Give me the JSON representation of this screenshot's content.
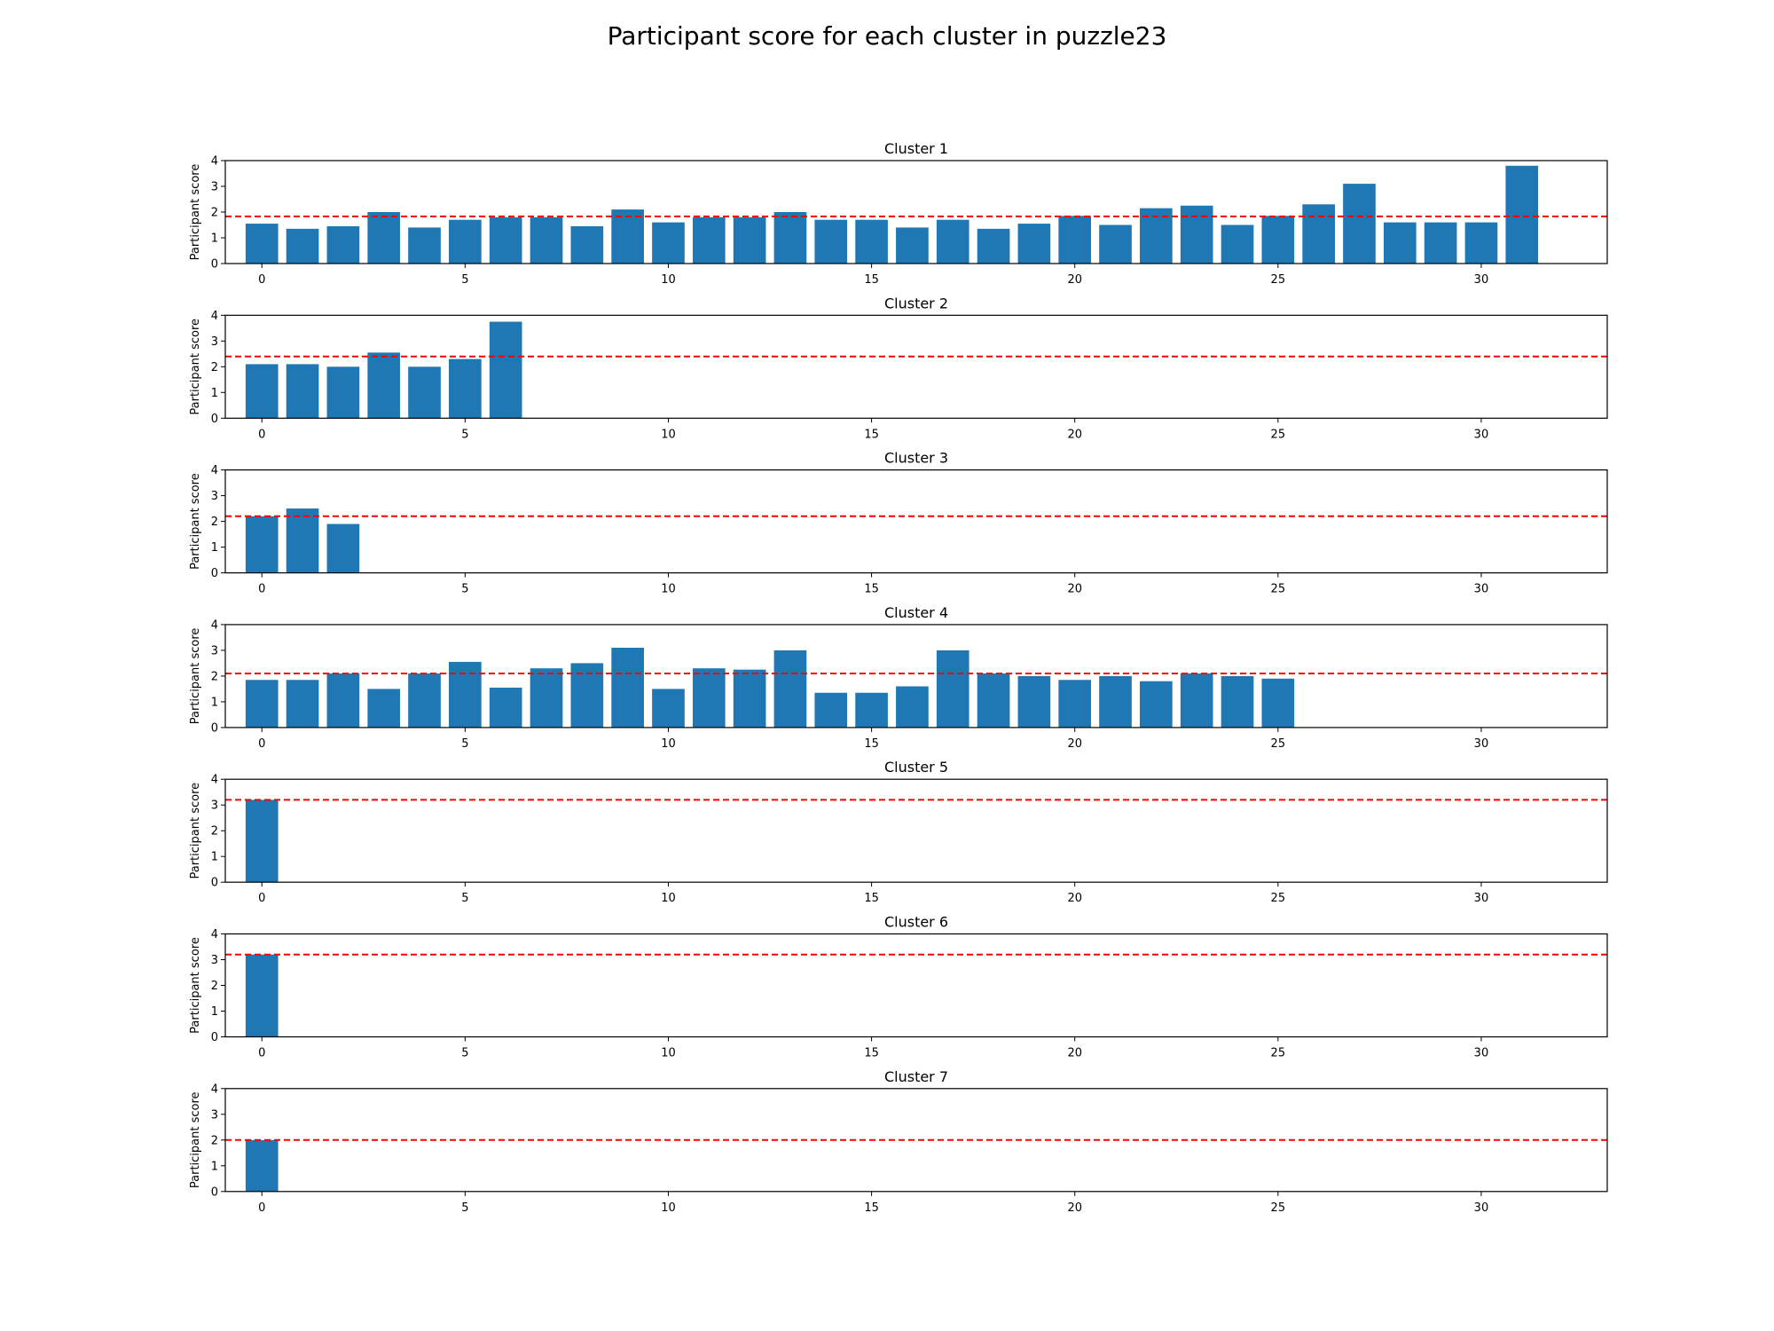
{
  "figure": {
    "title": "Participant score for each cluster in puzzle23"
  },
  "style": {
    "bar_color": "#1f77b4",
    "mean_line_color": "#ff0000",
    "axis_color": "#000000"
  },
  "chart_data": [
    {
      "type": "bar",
      "title": "Cluster 1",
      "xlabel": "",
      "ylabel": "Participant score",
      "xlim": [
        -0.9,
        33.1
      ],
      "ylim": [
        0,
        4
      ],
      "xticks": [
        0,
        5,
        10,
        15,
        20,
        25,
        30
      ],
      "yticks": [
        0,
        1,
        2,
        3,
        4
      ],
      "x": [
        0,
        1,
        2,
        3,
        4,
        5,
        6,
        7,
        8,
        9,
        10,
        11,
        12,
        13,
        14,
        15,
        16,
        17,
        18,
        19,
        20,
        21,
        22,
        23,
        24,
        25,
        26,
        27,
        28,
        29,
        30,
        31
      ],
      "values": [
        1.55,
        1.35,
        1.45,
        2.0,
        1.4,
        1.7,
        1.8,
        1.8,
        1.45,
        2.1,
        1.6,
        1.8,
        1.8,
        2.0,
        1.7,
        1.7,
        1.4,
        1.7,
        1.35,
        1.55,
        1.85,
        1.5,
        2.15,
        2.25,
        1.5,
        1.85,
        2.3,
        3.1,
        1.6,
        1.6,
        1.6,
        3.8
      ],
      "mean_line": 1.83
    },
    {
      "type": "bar",
      "title": "Cluster 2",
      "xlabel": "",
      "ylabel": "Participant score",
      "xlim": [
        -0.9,
        33.1
      ],
      "ylim": [
        0,
        4
      ],
      "xticks": [
        0,
        5,
        10,
        15,
        20,
        25,
        30
      ],
      "yticks": [
        0,
        1,
        2,
        3,
        4
      ],
      "x": [
        0,
        1,
        2,
        3,
        4,
        5,
        6
      ],
      "values": [
        2.1,
        2.1,
        2.0,
        2.55,
        2.0,
        2.3,
        3.75
      ],
      "mean_line": 2.4
    },
    {
      "type": "bar",
      "title": "Cluster 3",
      "xlabel": "",
      "ylabel": "Participant score",
      "xlim": [
        -0.9,
        33.1
      ],
      "ylim": [
        0,
        4
      ],
      "xticks": [
        0,
        5,
        10,
        15,
        20,
        25,
        30
      ],
      "yticks": [
        0,
        1,
        2,
        3,
        4
      ],
      "x": [
        0,
        1,
        2
      ],
      "values": [
        2.2,
        2.5,
        1.9
      ],
      "mean_line": 2.2
    },
    {
      "type": "bar",
      "title": "Cluster 4",
      "xlabel": "",
      "ylabel": "Participant score",
      "xlim": [
        -0.9,
        33.1
      ],
      "ylim": [
        0,
        4
      ],
      "xticks": [
        0,
        5,
        10,
        15,
        20,
        25,
        30
      ],
      "yticks": [
        0,
        1,
        2,
        3,
        4
      ],
      "x": [
        0,
        1,
        2,
        3,
        4,
        5,
        6,
        7,
        8,
        9,
        10,
        11,
        12,
        13,
        14,
        15,
        16,
        17,
        18,
        19,
        20,
        21,
        22,
        23,
        24,
        25
      ],
      "values": [
        1.85,
        1.85,
        2.1,
        1.5,
        2.1,
        2.55,
        1.55,
        2.3,
        2.5,
        3.1,
        1.5,
        2.3,
        2.25,
        3.0,
        1.35,
        1.35,
        1.6,
        3.0,
        2.1,
        2.0,
        1.85,
        2.0,
        1.8,
        2.1,
        2.0,
        1.9
      ],
      "mean_line": 2.1
    },
    {
      "type": "bar",
      "title": "Cluster 5",
      "xlabel": "",
      "ylabel": "Participant score",
      "xlim": [
        -0.9,
        33.1
      ],
      "ylim": [
        0,
        4
      ],
      "xticks": [
        0,
        5,
        10,
        15,
        20,
        25,
        30
      ],
      "yticks": [
        0,
        1,
        2,
        3,
        4
      ],
      "x": [
        0
      ],
      "values": [
        3.2
      ],
      "mean_line": 3.2
    },
    {
      "type": "bar",
      "title": "Cluster 6",
      "xlabel": "",
      "ylabel": "Participant score",
      "xlim": [
        -0.9,
        33.1
      ],
      "ylim": [
        0,
        4
      ],
      "xticks": [
        0,
        5,
        10,
        15,
        20,
        25,
        30
      ],
      "yticks": [
        0,
        1,
        2,
        3,
        4
      ],
      "x": [
        0
      ],
      "values": [
        3.2
      ],
      "mean_line": 3.2
    },
    {
      "type": "bar",
      "title": "Cluster 7",
      "xlabel": "",
      "ylabel": "Participant score",
      "xlim": [
        -0.9,
        33.1
      ],
      "ylim": [
        0,
        4
      ],
      "xticks": [
        0,
        5,
        10,
        15,
        20,
        25,
        30
      ],
      "yticks": [
        0,
        1,
        2,
        3,
        4
      ],
      "x": [
        0
      ],
      "values": [
        2.0
      ],
      "mean_line": 2.0
    }
  ]
}
